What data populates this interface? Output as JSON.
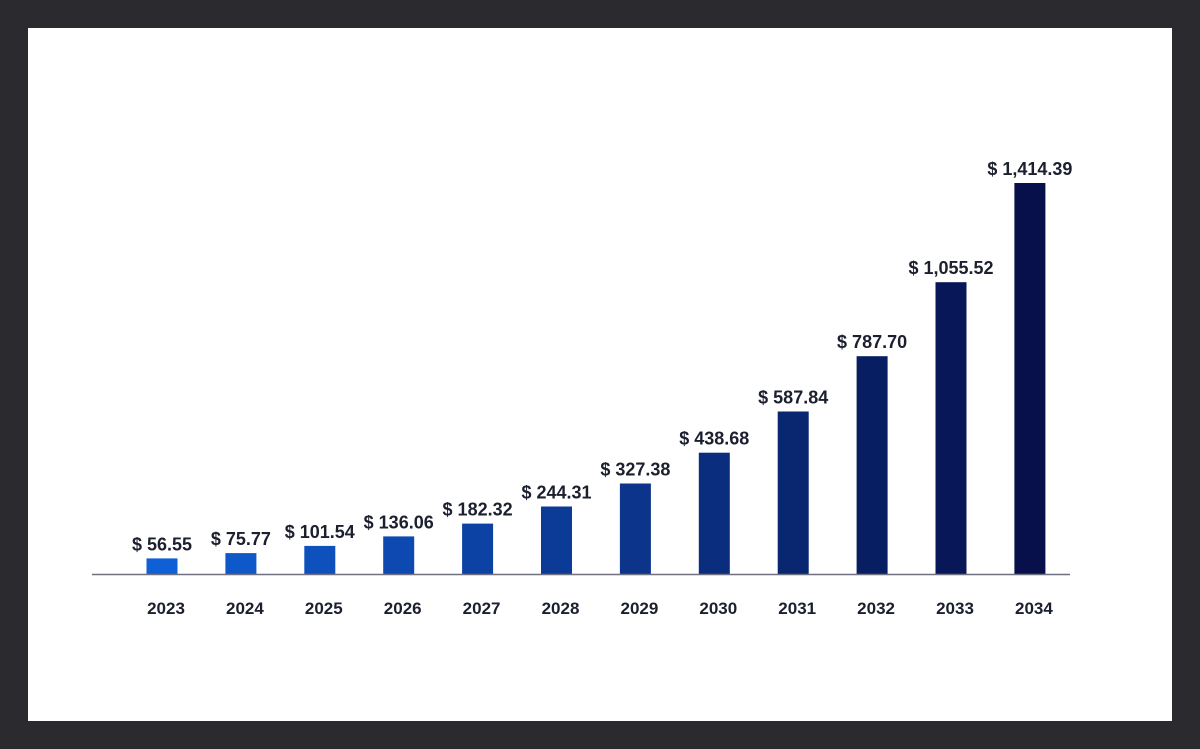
{
  "chart_data": {
    "type": "bar",
    "categories": [
      "2023",
      "2024",
      "2025",
      "2026",
      "2027",
      "2028",
      "2029",
      "2030",
      "2031",
      "2032",
      "2033",
      "2034"
    ],
    "values": [
      56.55,
      75.77,
      101.54,
      136.06,
      182.32,
      244.31,
      327.38,
      438.68,
      587.84,
      787.7,
      1055.52,
      1414.39
    ],
    "data_labels": [
      "$ 56.55",
      "$ 75.77",
      "$ 101.54",
      "$ 136.06",
      "$ 182.32",
      "$ 244.31",
      "$ 327.38",
      "$ 438.68",
      "$ 587.84",
      "$ 787.70",
      "$ 1,055.52",
      "$ 1,414.39"
    ],
    "title": "",
    "xlabel": "",
    "ylabel": "",
    "ylim": [
      0,
      1414.39
    ],
    "grid": false,
    "legend": "none",
    "colors": {
      "bar_start": "#0f5fd6",
      "bar_end": "#07104a",
      "axis": "#6f7180",
      "text": "#1b1f2e",
      "frame_bg": "#ffffff",
      "outer_bg": "#2b2a2e"
    }
  }
}
